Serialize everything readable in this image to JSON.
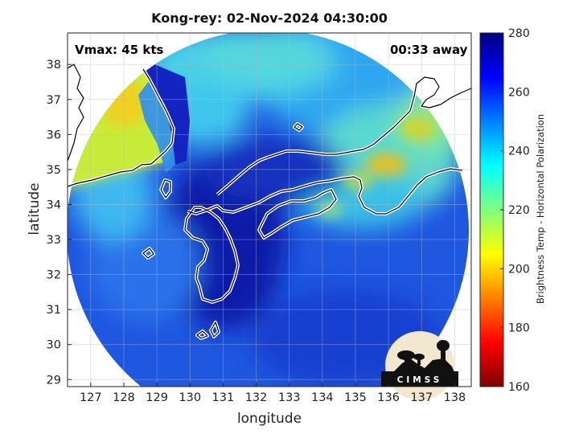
{
  "title": "Kong-rey: 02-Nov-2024 04:30:00",
  "vmax_label": "Vmax: 45 kts",
  "time_away_label": "00:33 away",
  "xlabel": "longitude",
  "ylabel": "latitude",
  "colorbar": {
    "label": "Brightness Temp - Horizontal Polarization",
    "min": 160,
    "max": 280,
    "ticks": [
      160,
      180,
      200,
      220,
      240,
      260,
      280
    ],
    "colormap": [
      "#800000",
      "#ff0000",
      "#ff8000",
      "#ffff00",
      "#80ff80",
      "#00ffff",
      "#0080ff",
      "#0000ff",
      "#000080"
    ]
  },
  "logo_text": "CIMSS",
  "map": {
    "lon_range": [
      126.3,
      138.5
    ],
    "lat_range": [
      28.8,
      38.9
    ],
    "lon_ticks": [
      127,
      128,
      129,
      130,
      131,
      132,
      133,
      134,
      135,
      136,
      137,
      138
    ],
    "lat_ticks": [
      29,
      30,
      31,
      32,
      33,
      34,
      35,
      36,
      37,
      38
    ],
    "grid": true,
    "colors": {
      "background_swath": "#1e57e0",
      "coastline": "#ffffff",
      "axes": "#262626"
    }
  }
}
